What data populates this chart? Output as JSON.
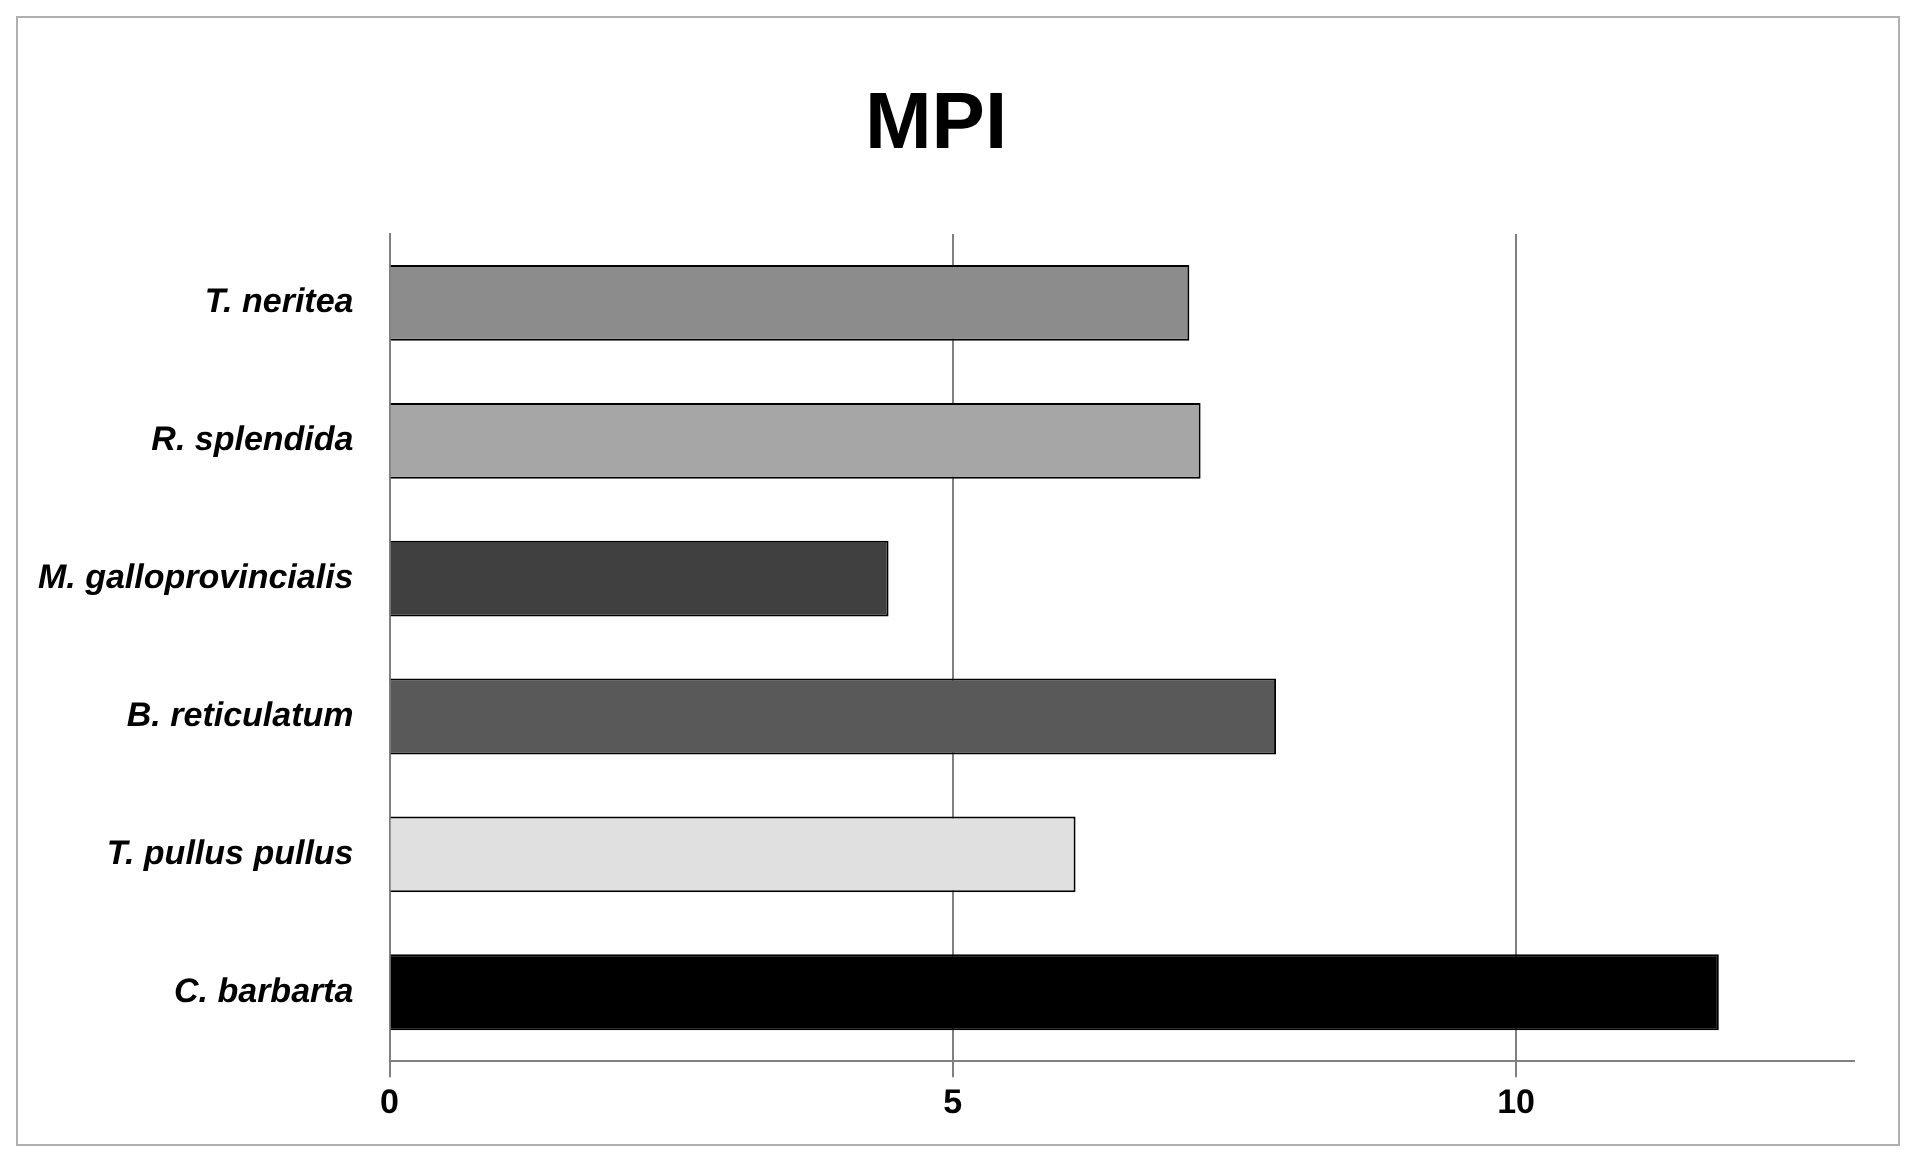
{
  "chart_data": {
    "type": "bar",
    "orientation": "horizontal",
    "title": "MPI",
    "categories": [
      "T. neritea",
      "R. splendida",
      "M. galloprovincialis",
      "B. reticulatum",
      "T. pullus pullus",
      "C. barbarta"
    ],
    "values": [
      7.1,
      7.2,
      4.43,
      7.87,
      6.09,
      11.8
    ],
    "colors": [
      "#8c8c8c",
      "#a6a6a6",
      "#404040",
      "#595959",
      "#e0e0e0",
      "#000000"
    ],
    "xlim": [
      0,
      13
    ],
    "xticks": [
      0,
      5,
      10
    ],
    "grid": "x",
    "legend": false
  }
}
